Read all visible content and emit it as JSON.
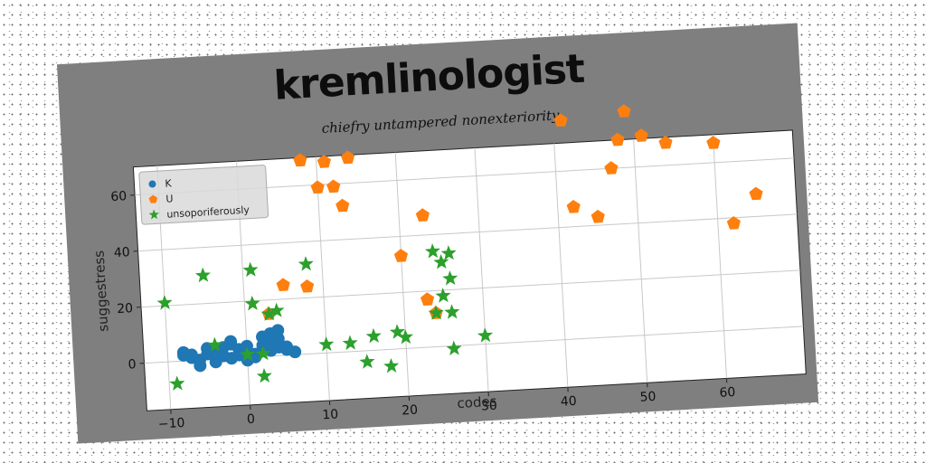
{
  "chart_data": {
    "type": "scatter",
    "title": "kremlinologist",
    "subtitle": "chiefry untampered nonexteriority",
    "xlabel": "codes",
    "ylabel": "suggestress",
    "xlim": [
      -13,
      70
    ],
    "ylim": [
      -17,
      70
    ],
    "xticks": [
      -10,
      0,
      10,
      20,
      30,
      40,
      50,
      60
    ],
    "yticks": [
      0,
      20,
      40,
      60
    ],
    "xtick_labels": [
      "−10",
      "0",
      "10",
      "20",
      "30",
      "40",
      "50",
      "60"
    ],
    "ytick_labels": [
      "0",
      "20",
      "40",
      "60"
    ],
    "grid": true,
    "legend_position": "top-left",
    "series": [
      {
        "name": "K",
        "marker": "circle",
        "color": "#1f77b4",
        "x": [
          -8,
          -7,
          -6,
          -5,
          -4,
          -3,
          -2,
          -1,
          0,
          1,
          2,
          3,
          4,
          5,
          6,
          -6,
          -4,
          -2,
          0,
          2,
          4,
          -7,
          -3,
          1,
          3,
          5,
          -5,
          -1,
          2,
          4,
          -8,
          -2,
          0,
          3
        ],
        "y": [
          3,
          1,
          0,
          2,
          -1,
          4,
          5,
          3,
          2,
          1,
          4,
          8,
          6,
          3,
          1,
          -2,
          2,
          6,
          -1,
          3,
          9,
          2,
          1,
          0,
          5,
          2,
          4,
          1,
          7,
          3,
          2,
          0,
          4,
          2
        ]
      },
      {
        "name": "U",
        "marker": "pentagon",
        "color": "#ff7f0e",
        "x": [
          8,
          11,
          14,
          10,
          12,
          13,
          5,
          8,
          3,
          20,
          23,
          23,
          24,
          41,
          42,
          45,
          47,
          48,
          49,
          51,
          54,
          60,
          62,
          65
        ],
        "y": [
          69,
          68,
          69,
          59,
          59,
          52,
          25,
          24,
          15,
          33,
          47,
          17,
          12,
          78,
          47,
          43,
          60,
          70,
          80,
          71,
          68,
          67,
          38,
          48
        ]
      },
      {
        "name": "unsoporiferously",
        "marker": "star",
        "color": "#2ca02c",
        "x": [
          -10,
          -5,
          1,
          8,
          -9,
          1,
          4,
          3,
          2,
          -4,
          0,
          2,
          10,
          13,
          16,
          19,
          20,
          15,
          18,
          24,
          26,
          25,
          26,
          25,
          26,
          24,
          26,
          30
        ],
        "y": [
          21,
          30,
          31,
          32,
          -8,
          19,
          16,
          15,
          -7,
          5,
          1,
          1,
          3,
          3,
          5,
          6,
          4,
          -4,
          -6,
          34,
          33,
          30,
          24,
          18,
          12,
          12,
          -1,
          3
        ]
      }
    ]
  }
}
